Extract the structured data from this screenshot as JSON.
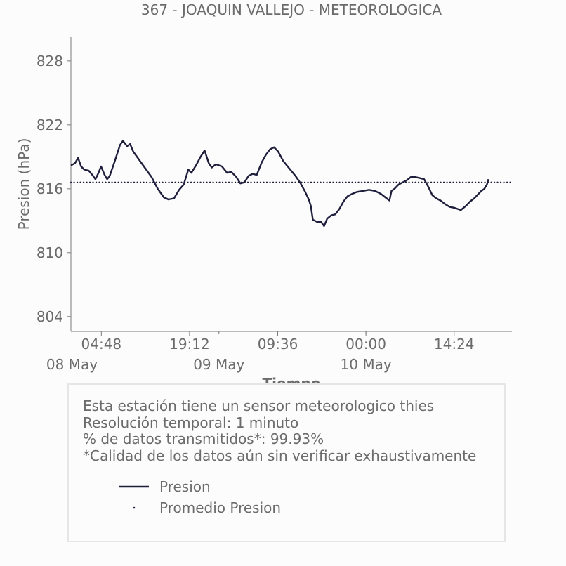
{
  "chart_data": {
    "type": "line",
    "title": "367 - JOAQUIN VALLEJO - METEOROLOGICA",
    "xlabel": "Tiempo",
    "ylabel": "Presion (hPa)",
    "x_unit": "datetime",
    "xlim": [
      "2024-05-07T23:50",
      "2024-05-10T23:50"
    ],
    "ylim": [
      802.6,
      830.3
    ],
    "y_ticks": [
      {
        "value": 804,
        "label": "804"
      },
      {
        "value": 810,
        "label": "810"
      },
      {
        "value": 816,
        "label": "816"
      },
      {
        "value": 822,
        "label": "822"
      },
      {
        "value": 828,
        "label": "828"
      }
    ],
    "x_major_ticks": [
      {
        "t": "2024-05-08T04:48",
        "label": "04:48"
      },
      {
        "t": "2024-05-08T19:12",
        "label": "19:12"
      },
      {
        "t": "2024-05-09T09:36",
        "label": "09:36"
      },
      {
        "t": "2024-05-10T00:00",
        "label": "00:00"
      },
      {
        "t": "2024-05-10T14:24",
        "label": "14:24"
      }
    ],
    "x_day_ticks": [
      {
        "t": "2024-05-08T00:00",
        "label": "08 May"
      },
      {
        "t": "2024-05-09T00:00",
        "label": "09 May"
      },
      {
        "t": "2024-05-10T00:00",
        "label": "10 May"
      }
    ],
    "grid": false,
    "series": [
      {
        "name": "Presion",
        "color": "#1f1f3d",
        "style": "solid",
        "points": [
          [
            "2024-05-07T23:50",
            818.2
          ],
          [
            "2024-05-08T00:30",
            818.4
          ],
          [
            "2024-05-08T01:00",
            818.9
          ],
          [
            "2024-05-08T01:30",
            818.1
          ],
          [
            "2024-05-08T02:00",
            817.8
          ],
          [
            "2024-05-08T02:45",
            817.7
          ],
          [
            "2024-05-08T03:20",
            817.3
          ],
          [
            "2024-05-08T03:50",
            816.9
          ],
          [
            "2024-05-08T04:20",
            817.5
          ],
          [
            "2024-05-08T04:45",
            818.1
          ],
          [
            "2024-05-08T05:20",
            817.3
          ],
          [
            "2024-05-08T05:45",
            816.9
          ],
          [
            "2024-05-08T06:10",
            817.2
          ],
          [
            "2024-05-08T07:00",
            818.6
          ],
          [
            "2024-05-08T07:50",
            820.1
          ],
          [
            "2024-05-08T08:20",
            820.5
          ],
          [
            "2024-05-08T09:00",
            820.0
          ],
          [
            "2024-05-08T09:30",
            820.2
          ],
          [
            "2024-05-08T10:00",
            819.5
          ],
          [
            "2024-05-08T11:00",
            818.7
          ],
          [
            "2024-05-08T12:00",
            817.9
          ],
          [
            "2024-05-08T13:00",
            817.1
          ],
          [
            "2024-05-08T14:00",
            816.0
          ],
          [
            "2024-05-08T15:00",
            815.2
          ],
          [
            "2024-05-08T15:45",
            815.0
          ],
          [
            "2024-05-08T16:40",
            815.1
          ],
          [
            "2024-05-08T17:30",
            815.9
          ],
          [
            "2024-05-08T18:15",
            816.4
          ],
          [
            "2024-05-08T19:00",
            817.8
          ],
          [
            "2024-05-08T19:30",
            817.5
          ],
          [
            "2024-05-08T20:15",
            818.2
          ],
          [
            "2024-05-08T21:00",
            819.0
          ],
          [
            "2024-05-08T21:40",
            819.6
          ],
          [
            "2024-05-08T22:20",
            818.4
          ],
          [
            "2024-05-08T22:50",
            818.0
          ],
          [
            "2024-05-08T23:30",
            818.3
          ],
          [
            "2024-05-09T00:30",
            818.1
          ],
          [
            "2024-05-09T01:20",
            817.5
          ],
          [
            "2024-05-09T02:00",
            817.6
          ],
          [
            "2024-05-09T02:50",
            817.1
          ],
          [
            "2024-05-09T03:30",
            816.5
          ],
          [
            "2024-05-09T04:10",
            816.6
          ],
          [
            "2024-05-09T04:50",
            817.2
          ],
          [
            "2024-05-09T05:30",
            817.4
          ],
          [
            "2024-05-09T06:10",
            817.3
          ],
          [
            "2024-05-09T07:00",
            818.5
          ],
          [
            "2024-05-09T07:40",
            819.2
          ],
          [
            "2024-05-09T08:20",
            819.7
          ],
          [
            "2024-05-09T09:00",
            819.9
          ],
          [
            "2024-05-09T09:40",
            819.5
          ],
          [
            "2024-05-09T10:30",
            818.6
          ],
          [
            "2024-05-09T11:30",
            817.9
          ],
          [
            "2024-05-09T12:30",
            817.2
          ],
          [
            "2024-05-09T13:20",
            816.5
          ],
          [
            "2024-05-09T14:00",
            815.8
          ],
          [
            "2024-05-09T14:40",
            815.0
          ],
          [
            "2024-05-09T15:00",
            814.4
          ],
          [
            "2024-05-09T15:20",
            813.1
          ],
          [
            "2024-05-09T16:00",
            812.9
          ],
          [
            "2024-05-09T16:40",
            812.9
          ],
          [
            "2024-05-09T17:10",
            812.5
          ],
          [
            "2024-05-09T17:40",
            813.2
          ],
          [
            "2024-05-09T18:20",
            813.5
          ],
          [
            "2024-05-09T19:00",
            813.6
          ],
          [
            "2024-05-09T19:40",
            814.1
          ],
          [
            "2024-05-09T20:20",
            814.8
          ],
          [
            "2024-05-09T21:00",
            815.3
          ],
          [
            "2024-05-09T21:40",
            815.5
          ],
          [
            "2024-05-09T22:30",
            815.7
          ],
          [
            "2024-05-09T23:30",
            815.8
          ],
          [
            "2024-05-10T00:30",
            815.9
          ],
          [
            "2024-05-10T01:30",
            815.8
          ],
          [
            "2024-05-10T02:30",
            815.5
          ],
          [
            "2024-05-10T03:10",
            815.2
          ],
          [
            "2024-05-10T03:50",
            814.9
          ],
          [
            "2024-05-10T04:10",
            815.8
          ],
          [
            "2024-05-10T04:40",
            816.0
          ],
          [
            "2024-05-10T05:20",
            816.4
          ],
          [
            "2024-05-10T06:00",
            816.6
          ],
          [
            "2024-05-10T06:40",
            816.8
          ],
          [
            "2024-05-10T07:20",
            817.1
          ],
          [
            "2024-05-10T08:00",
            817.1
          ],
          [
            "2024-05-10T08:50",
            817.0
          ],
          [
            "2024-05-10T09:30",
            816.9
          ],
          [
            "2024-05-10T10:10",
            816.2
          ],
          [
            "2024-05-10T10:50",
            815.4
          ],
          [
            "2024-05-10T11:30",
            815.1
          ],
          [
            "2024-05-10T12:10",
            814.9
          ],
          [
            "2024-05-10T12:50",
            814.6
          ],
          [
            "2024-05-10T13:40",
            814.3
          ],
          [
            "2024-05-10T14:30",
            814.2
          ],
          [
            "2024-05-10T15:30",
            814.0
          ],
          [
            "2024-05-10T16:20",
            814.4
          ],
          [
            "2024-05-10T17:00",
            814.8
          ],
          [
            "2024-05-10T17:40",
            815.1
          ],
          [
            "2024-05-10T18:20",
            815.5
          ],
          [
            "2024-05-10T18:50",
            815.8
          ],
          [
            "2024-05-10T19:20",
            816.0
          ],
          [
            "2024-05-10T19:45",
            816.4
          ],
          [
            "2024-05-10T20:00",
            816.9
          ]
        ]
      },
      {
        "name": "Promedio Presion",
        "color": "#1f1f3d",
        "style": "dotted",
        "value": 816.6
      }
    ],
    "legend_position": "inside info box, bottom-left"
  },
  "info": {
    "lines": [
      "Esta estación tiene un sensor meteorologico thies",
      "Resolución temporal: 1 minuto",
      "% de datos transmitidos*: 99.93%",
      "*Calidad de los datos aún sin verificar exhaustivamente"
    ]
  },
  "legend": {
    "items": [
      "Presion",
      "Promedio Presion"
    ]
  }
}
